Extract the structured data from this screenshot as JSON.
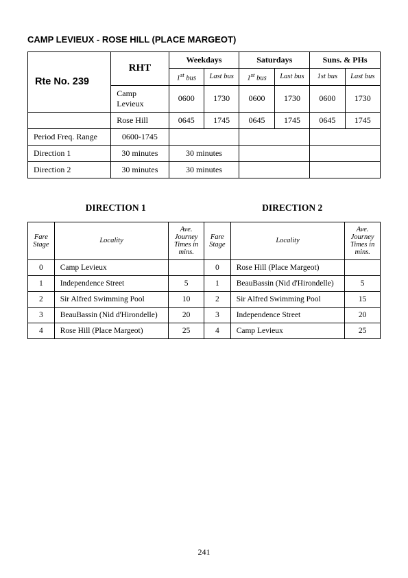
{
  "page_title": "CAMP LEVIEUX - ROSE HILL (PLACE MARGEOT)",
  "route_no": "Rte No. 239",
  "operator": "RHT",
  "day_groups": [
    "Weekdays",
    "Saturdays",
    "Suns. & PHs"
  ],
  "sub_labels": {
    "first_italic": "1",
    "first_sup": "st",
    "first_rest": " bus",
    "last": "Last bus",
    "first_plain": "1st bus"
  },
  "stops": [
    {
      "name": "Camp Levieux",
      "wk": [
        "0600",
        "1730"
      ],
      "sa": [
        "0600",
        "1730"
      ],
      "su": [
        "0600",
        "1730"
      ]
    },
    {
      "name": "Rose Hill",
      "wk": [
        "0645",
        "1745"
      ],
      "sa": [
        "0645",
        "1745"
      ],
      "su": [
        "0645",
        "1745"
      ]
    }
  ],
  "period_row": {
    "label": "Period Freq. Range",
    "value": "0600-1745"
  },
  "dir_rows": [
    {
      "label": "Direction 1",
      "col1": "30 minutes",
      "col2": "30 minutes"
    },
    {
      "label": "Direction 2",
      "col1": "30 minutes",
      "col2": "30 minutes"
    }
  ],
  "dir_titles": [
    "DIRECTION  1",
    "DIRECTION  2"
  ],
  "t2_headers": {
    "fare": "Fare Stage",
    "loc": "Locality",
    "ave": "Ave. Journey Times in mins."
  },
  "direction1": [
    {
      "stage": "0",
      "loc": "Camp Levieux",
      "time": ""
    },
    {
      "stage": "1",
      "loc": "Independence Street",
      "time": "5"
    },
    {
      "stage": "2",
      "loc": "Sir Alfred Swimming Pool",
      "time": "10"
    },
    {
      "stage": "3",
      "loc": "BeauBassin (Nid d'Hirondelle)",
      "time": "20"
    },
    {
      "stage": "4",
      "loc": "Rose Hill (Place Margeot)",
      "time": "25"
    }
  ],
  "direction2": [
    {
      "stage": "0",
      "loc": "Rose Hill (Place Margeot)",
      "time": ""
    },
    {
      "stage": "1",
      "loc": "BeauBassin (Nid d'Hirondelle)",
      "time": "5"
    },
    {
      "stage": "2",
      "loc": "Sir Alfred Swimming Pool",
      "time": "15"
    },
    {
      "stage": "3",
      "loc": "Independence Street",
      "time": "20"
    },
    {
      "stage": "4",
      "loc": "Camp Levieux",
      "time": "25"
    }
  ],
  "page_number": "241"
}
